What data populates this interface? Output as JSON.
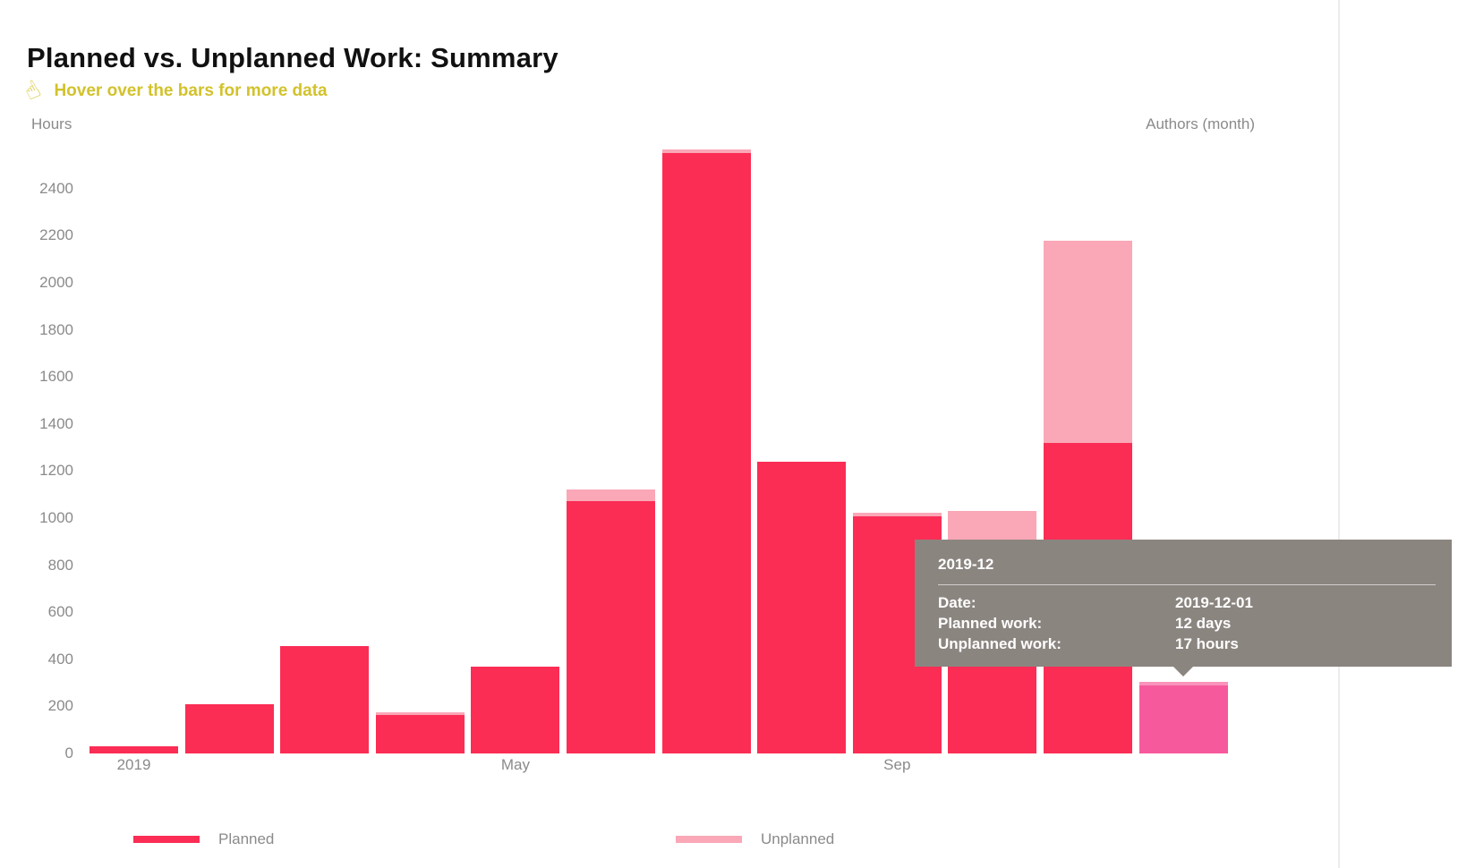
{
  "page": {
    "title": "Planned vs. Unplanned Work: Summary",
    "hint": "Hover over the bars for more data",
    "y_axis_title": "Hours",
    "x_axis_title": "Authors (month)",
    "colors": {
      "planned": "#fb2d55",
      "unplanned": "#faa7b7",
      "hovered_planned": "#f75a9c",
      "hovered_unplanned": "#fa93bb",
      "hint_yellow": "#d2c22b",
      "tooltip_bg": "#8b8580",
      "axis_text": "#8c8a89"
    }
  },
  "chart_data": {
    "type": "bar",
    "stacked": true,
    "title": "Planned vs. Unplanned Work: Summary",
    "xlabel": "Authors (month)",
    "ylabel": "Hours",
    "ylim": [
      0,
      2600
    ],
    "grid": false,
    "categories": [
      "2019-01",
      "2019-02",
      "2019-03",
      "2019-04",
      "2019-05",
      "2019-06",
      "2019-07",
      "2019-08",
      "2019-09",
      "2019-10",
      "2019-11",
      "2019-12"
    ],
    "series": [
      {
        "name": "Planned",
        "values": [
          30,
          210,
          457,
          164,
          370,
          1071,
          2550,
          1238,
          1006,
          850,
          1318,
          288
        ]
      },
      {
        "name": "Unplanned",
        "values": [
          0,
          0,
          0,
          11,
          0,
          50,
          15,
          0,
          15,
          180,
          860,
          17
        ]
      }
    ],
    "y_ticks": [
      0,
      200,
      400,
      600,
      800,
      1000,
      1200,
      1400,
      1600,
      1800,
      2000,
      2200,
      2400
    ],
    "x_tick_labels": [
      {
        "index": 0,
        "label": "2019"
      },
      {
        "index": 4,
        "label": "May"
      },
      {
        "index": 8,
        "label": "Sep"
      }
    ],
    "hovered_index": 11,
    "legend_position": "bottom"
  },
  "legend": {
    "items": [
      {
        "label": "Planned"
      },
      {
        "label": "Unplanned"
      }
    ]
  },
  "tooltip": {
    "title": "2019-12",
    "rows": [
      {
        "label": "Date:",
        "value": "2019-12-01"
      },
      {
        "label": "Planned work:",
        "value": "12 days"
      },
      {
        "label": "Unplanned work:",
        "value": "17 hours"
      }
    ]
  }
}
